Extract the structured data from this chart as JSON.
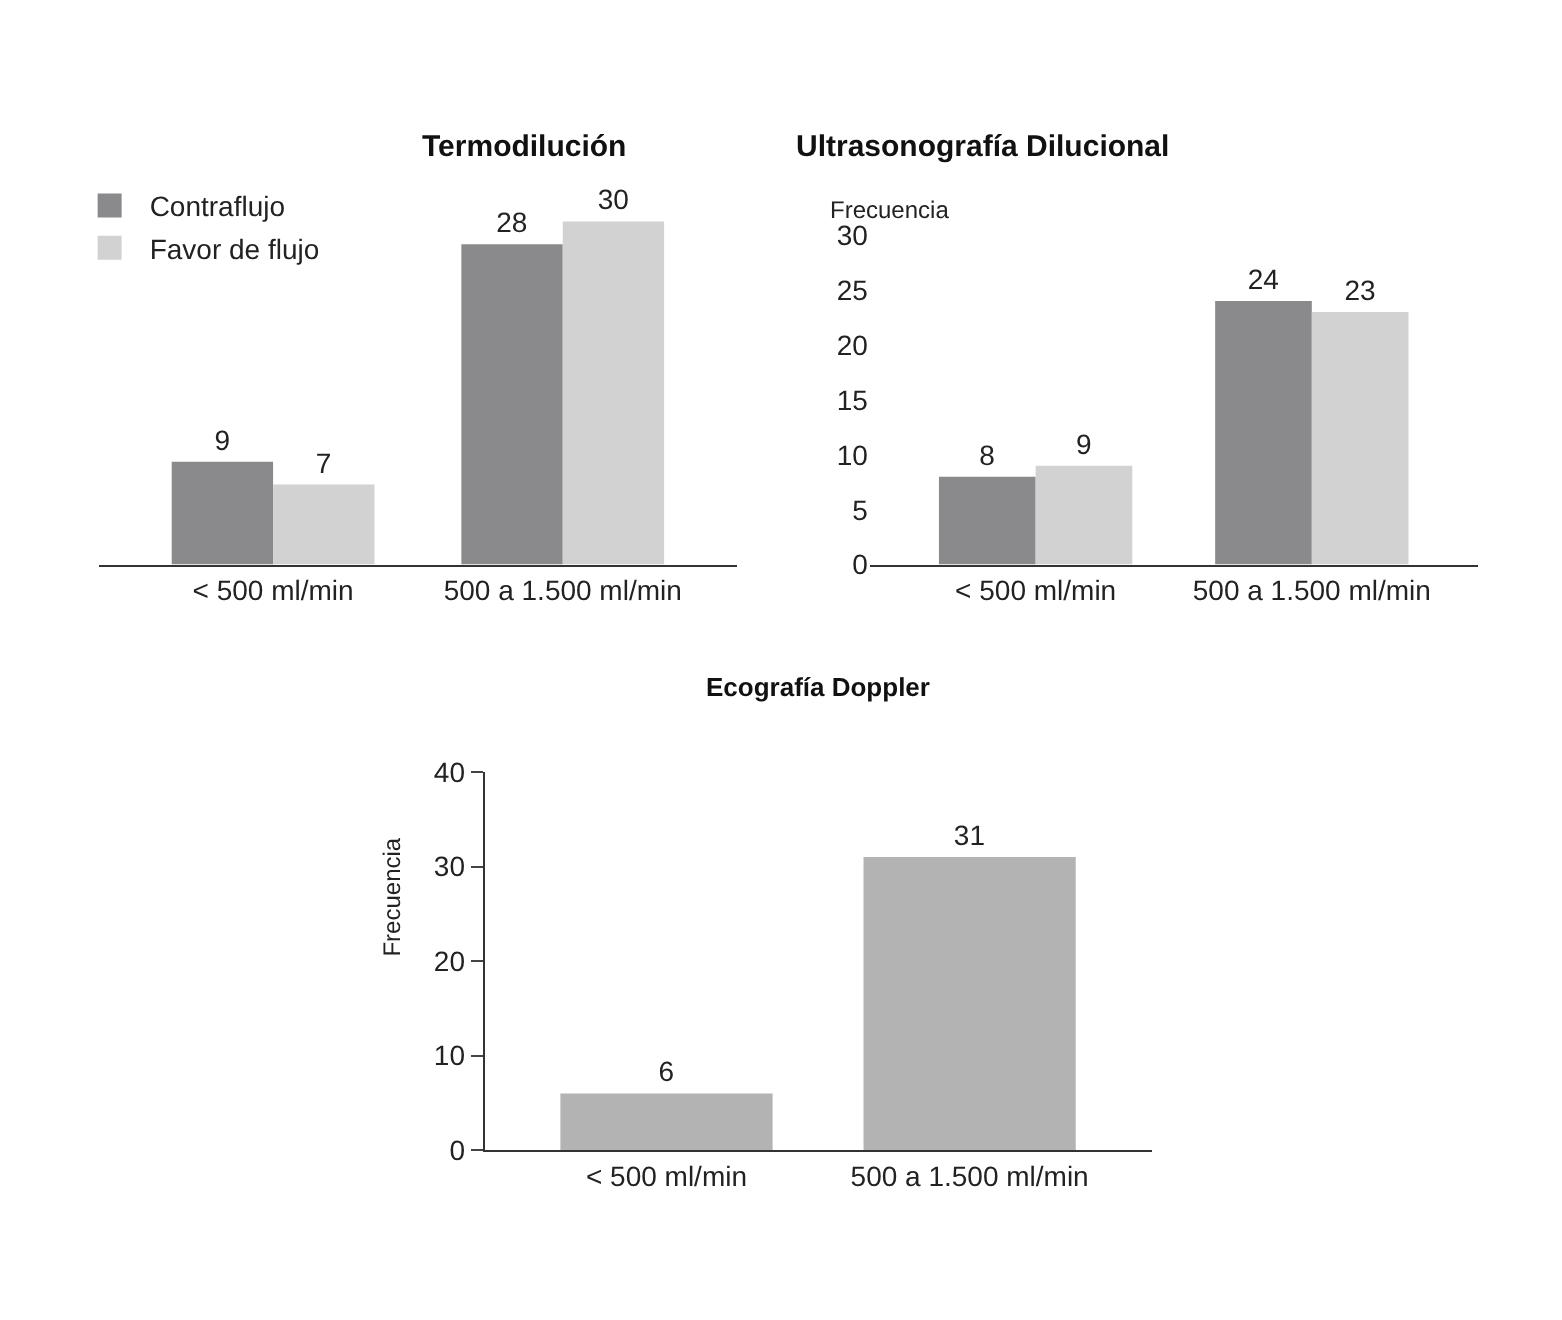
{
  "chart_data": [
    {
      "type": "bar",
      "title": "Termodilución",
      "categories": [
        "< 500 ml/min",
        "500 a 1.500 ml/min"
      ],
      "data_labels": true,
      "legend": "top left",
      "ylim": [
        0,
        32
      ],
      "series": [
        {
          "name": "Contraflujo",
          "color": "#8a8a8c",
          "values": [
            9,
            28
          ]
        },
        {
          "name": "Favor de flujo",
          "color": "#d2d2d2",
          "values": [
            7,
            30
          ]
        }
      ]
    },
    {
      "type": "bar",
      "title": "Ultrasonografía Dilucional",
      "ylabel": "Frecuencia",
      "categories": [
        "< 500 ml/min",
        "500 a 1.500 ml/min"
      ],
      "data_labels": true,
      "ylim": [
        0,
        30
      ],
      "yticks": [
        0,
        5,
        10,
        15,
        20,
        25,
        30
      ],
      "series": [
        {
          "color": "#8a8a8c",
          "values": [
            8,
            24
          ]
        },
        {
          "color": "#d2d2d2",
          "values": [
            9,
            23
          ]
        }
      ]
    },
    {
      "type": "bar",
      "title": "Ecografía Doppler",
      "ylabel": "Frecuencia",
      "categories": [
        "< 500 ml/min",
        "500 a 1.500 ml/min"
      ],
      "data_labels": true,
      "ylim": [
        0,
        40
      ],
      "yticks": [
        0,
        10,
        20,
        30,
        40
      ],
      "series": [
        {
          "color": "#b3b3b3",
          "values": [
            6,
            31
          ]
        }
      ]
    }
  ]
}
